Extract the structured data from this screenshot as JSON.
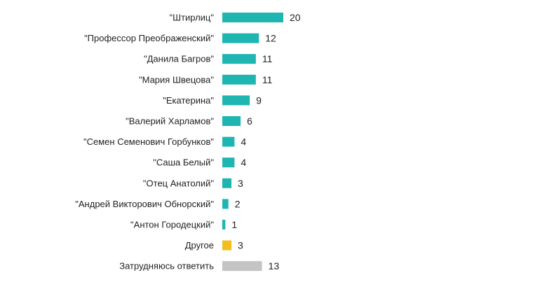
{
  "chart_data": {
    "type": "bar",
    "orientation": "horizontal",
    "title": "",
    "xlabel": "",
    "ylabel": "",
    "grid": false,
    "legend": "none",
    "categories": [
      "\"Штирлиц\"",
      "\"Профессор Преображенский\"",
      "\"Данила Багров\"",
      "\"Мария Швецова\"",
      "\"Екатерина\"",
      "\"Валерий Харламов\"",
      "\"Семен Семенович Горбунков\"",
      "\"Саша Белый\"",
      "\"Отец Анатолий\"",
      "\"Андрей Викторович Обнорский\"",
      "\"Антон Городецкий\"",
      "Другое",
      "Затрудняюсь ответить"
    ],
    "values": [
      20,
      12,
      11,
      11,
      9,
      6,
      4,
      4,
      3,
      2,
      1,
      3,
      13
    ],
    "value_labels": [
      "20",
      "12",
      "11",
      "11",
      "9",
      "6",
      "4",
      "4",
      "3",
      "2",
      "1",
      "3",
      "13"
    ],
    "bar_colors": [
      "#1fb5b0",
      "#1fb5b0",
      "#1fb5b0",
      "#1fb5b0",
      "#1fb5b0",
      "#1fb5b0",
      "#1fb5b0",
      "#1fb5b0",
      "#1fb5b0",
      "#1fb5b0",
      "#1fb5b0",
      "#f2bd1d",
      "#c4c4c4"
    ],
    "xlim": [
      0,
      20
    ]
  }
}
